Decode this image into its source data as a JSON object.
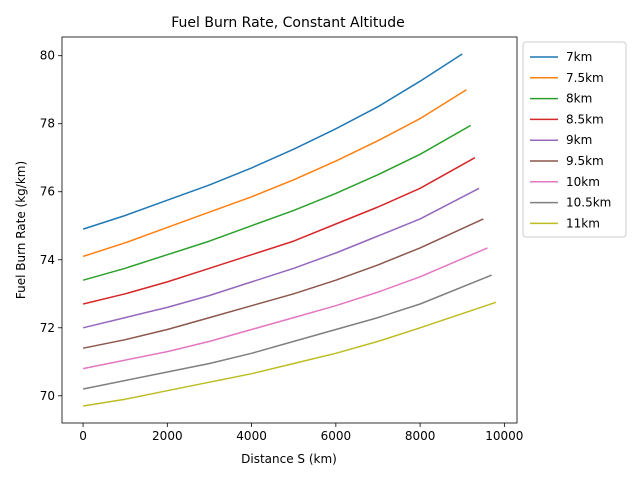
{
  "chart_data": {
    "type": "line",
    "title": "Fuel Burn Rate, Constant Altitude",
    "xlabel": "Distance S (km)",
    "ylabel": "Fuel Burn Rate (kg/km)",
    "xlim": [
      -500,
      10300
    ],
    "ylim": [
      69.2,
      80.55
    ],
    "xticks": [
      0,
      2000,
      4000,
      6000,
      8000,
      10000
    ],
    "yticks": [
      70,
      72,
      74,
      76,
      78,
      80
    ],
    "grid": false,
    "legend_position": "outside-right",
    "series": [
      {
        "name": "7km",
        "color": "#1f77b4",
        "x": [
          0,
          1000,
          2000,
          3000,
          4000,
          5000,
          6000,
          7000,
          8000,
          9000
        ],
        "y": [
          74.9,
          75.3,
          75.75,
          76.2,
          76.7,
          77.25,
          77.85,
          78.5,
          79.25,
          80.05
        ]
      },
      {
        "name": "7.5km",
        "color": "#ff7f0e",
        "x": [
          0,
          1000,
          2000,
          3000,
          4000,
          5000,
          6000,
          7000,
          8000,
          9100
        ],
        "y": [
          74.1,
          74.5,
          74.95,
          75.4,
          75.85,
          76.35,
          76.9,
          77.5,
          78.15,
          79.0
        ]
      },
      {
        "name": "8km",
        "color": "#2ca02c",
        "x": [
          0,
          1000,
          2000,
          3000,
          4000,
          5000,
          6000,
          7000,
          8000,
          9200
        ],
        "y": [
          73.4,
          73.75,
          74.15,
          74.55,
          75.0,
          75.45,
          75.95,
          76.5,
          77.1,
          77.95
        ]
      },
      {
        "name": "8.5km",
        "color": "#d62728",
        "x": [
          0,
          1000,
          2000,
          3000,
          4000,
          5000,
          6000,
          7000,
          8000,
          9300
        ],
        "y": [
          72.7,
          73.0,
          73.35,
          73.75,
          74.15,
          74.55,
          75.05,
          75.55,
          76.1,
          77.0
        ]
      },
      {
        "name": "9km",
        "color": "#9467bd",
        "x": [
          0,
          1000,
          2000,
          3000,
          4000,
          5000,
          6000,
          7000,
          8000,
          9400
        ],
        "y": [
          72.0,
          72.3,
          72.6,
          72.95,
          73.35,
          73.75,
          74.2,
          74.7,
          75.2,
          76.1
        ]
      },
      {
        "name": "9.5km",
        "color": "#8c564b",
        "x": [
          0,
          1000,
          2000,
          3000,
          4000,
          5000,
          6000,
          7000,
          8000,
          9500
        ],
        "y": [
          71.4,
          71.65,
          71.95,
          72.3,
          72.65,
          73.0,
          73.4,
          73.85,
          74.35,
          75.2
        ]
      },
      {
        "name": "10km",
        "color": "#e377c2",
        "x": [
          0,
          1000,
          2000,
          3000,
          4000,
          5000,
          6000,
          7000,
          8000,
          9600
        ],
        "y": [
          70.8,
          71.05,
          71.3,
          71.6,
          71.95,
          72.3,
          72.65,
          73.05,
          73.5,
          74.35
        ]
      },
      {
        "name": "10.5km",
        "color": "#7f7f7f",
        "x": [
          0,
          1000,
          2000,
          3000,
          4000,
          5000,
          6000,
          7000,
          8000,
          9700
        ],
        "y": [
          70.2,
          70.45,
          70.7,
          70.95,
          71.25,
          71.6,
          71.95,
          72.3,
          72.7,
          73.55
        ]
      },
      {
        "name": "11km",
        "color": "#bcbd22",
        "x": [
          0,
          1000,
          2000,
          3000,
          4000,
          5000,
          6000,
          7000,
          8000,
          9800
        ],
        "y": [
          69.7,
          69.9,
          70.15,
          70.4,
          70.65,
          70.95,
          71.25,
          71.6,
          72.0,
          72.75
        ]
      }
    ]
  }
}
